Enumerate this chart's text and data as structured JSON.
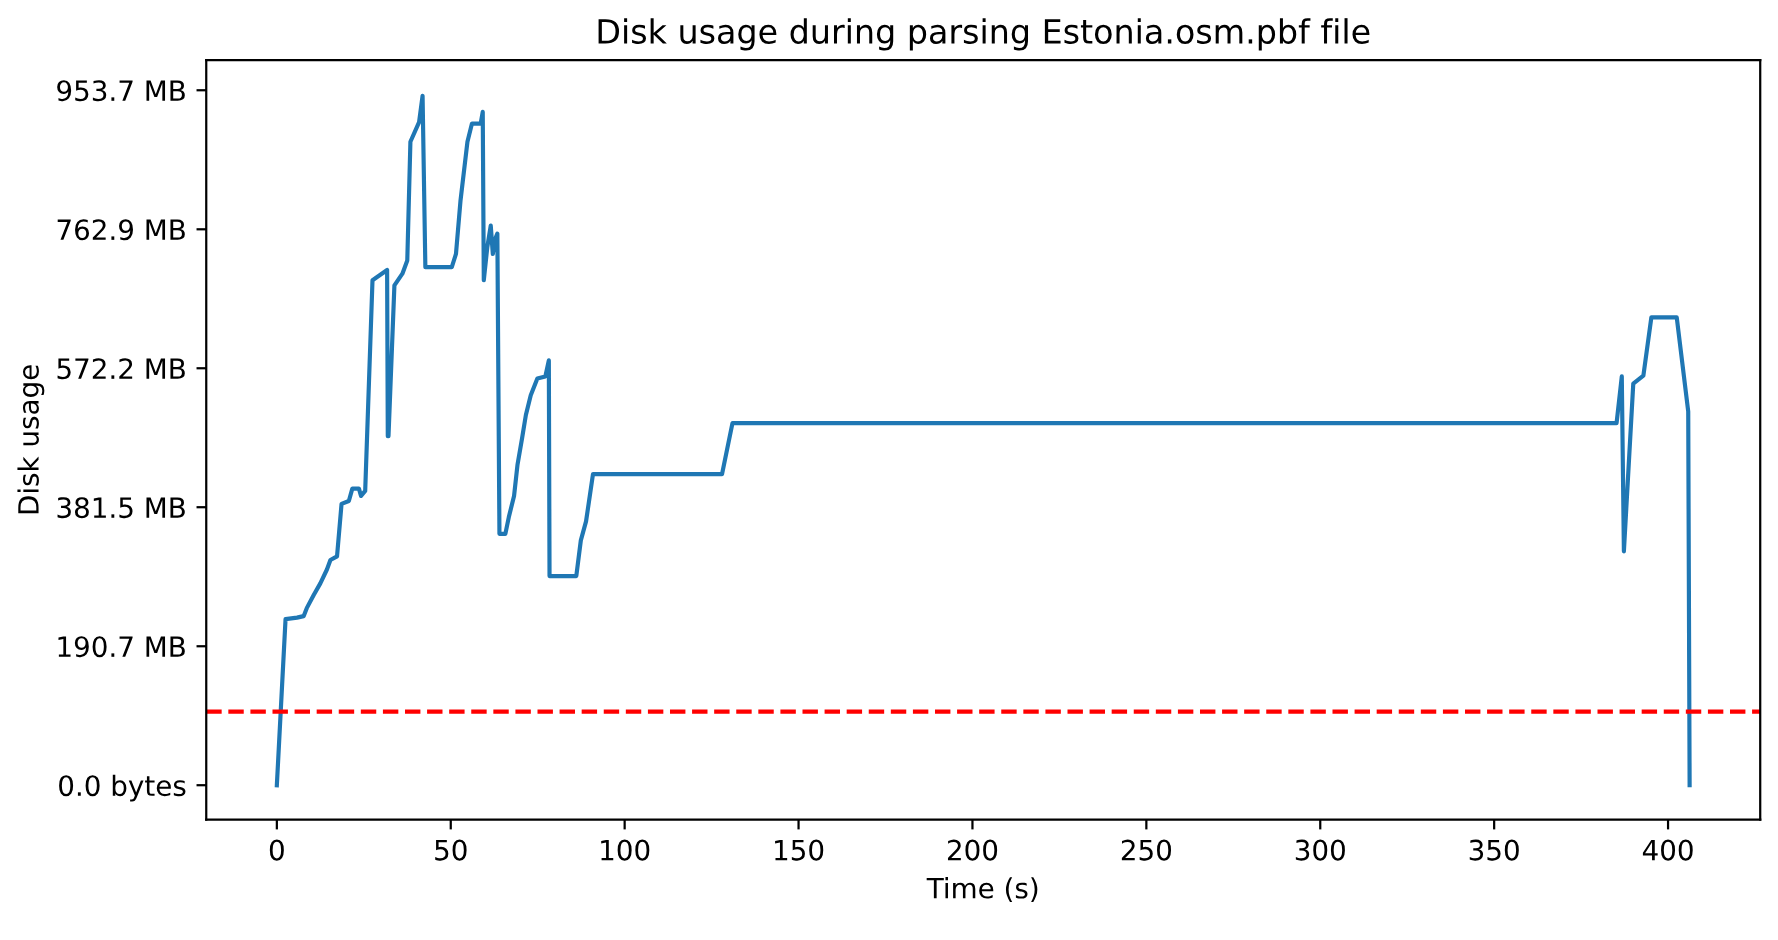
{
  "chart_data": {
    "type": "line",
    "title": "Disk usage during parsing Estonia.osm.pbf file",
    "xlabel": "Time (s)",
    "ylabel": "Disk usage",
    "x": [
      0,
      2.5,
      5.8,
      7.7,
      8.6,
      10.6,
      12.5,
      14.4,
      15.4,
      17.3,
      18.6,
      20.7,
      21.7,
      23.6,
      24.2,
      25.4,
      27.5,
      31.7,
      31.9,
      32.1,
      33.8,
      36.1,
      37.5,
      38.4,
      40.9,
      41.9,
      42.7,
      50.3,
      51.5,
      52.8,
      54.8,
      56.1,
      58.6,
      59.2,
      59.5,
      60.5,
      61.5,
      62.1,
      62.8,
      63.4,
      64.0,
      65.7,
      66.7,
      68.2,
      69.2,
      70.5,
      71.6,
      73.0,
      74.9,
      77.2,
      78.2,
      78.4,
      86.1,
      87.4,
      88.9,
      90.9,
      128,
      131,
      385.2,
      386.7,
      387.3,
      390.0,
      392.9,
      395.2,
      402.5,
      405.8,
      406.2
    ],
    "series": [
      {
        "color": "#1f77b4",
        "values": [
          0,
          228,
          230,
          232,
          243,
          261,
          277,
          296,
          309,
          314,
          386,
          390,
          407,
          407,
          397,
          404,
          693,
          707,
          479,
          479,
          686,
          702,
          720,
          883,
          910,
          946,
          711,
          711,
          729,
          802,
          883,
          908,
          908,
          924,
          693,
          738,
          768,
          729,
          750,
          757,
          345,
          345,
          368,
          397,
          440,
          476,
          508,
          535,
          558,
          561,
          583,
          287,
          287,
          336,
          362,
          427,
          427,
          497,
          497,
          561,
          321,
          551,
          562,
          642,
          642,
          513,
          0
        ]
      }
    ],
    "ref_lines": [
      {
        "axis": "y",
        "value": 101,
        "color": "#ff0000",
        "line_style": "dashed"
      }
    ],
    "xlim": [
      -20.3,
      426.5
    ],
    "xticks": [
      0,
      50,
      100,
      150,
      200,
      250,
      300,
      350,
      400
    ],
    "ylim": [
      -47.3,
      995
    ],
    "yticks": [
      {
        "value": 0,
        "label": "0.0 bytes"
      },
      {
        "value": 190.7,
        "label": "190.7 MB"
      },
      {
        "value": 381.5,
        "label": "381.5 MB"
      },
      {
        "value": 572.2,
        "label": "572.2 MB"
      },
      {
        "value": 762.9,
        "label": "762.9 MB"
      },
      {
        "value": 953.7,
        "label": "953.7 MB"
      }
    ],
    "grid": false,
    "legend": false,
    "marker": "none",
    "line_style": "solid"
  }
}
